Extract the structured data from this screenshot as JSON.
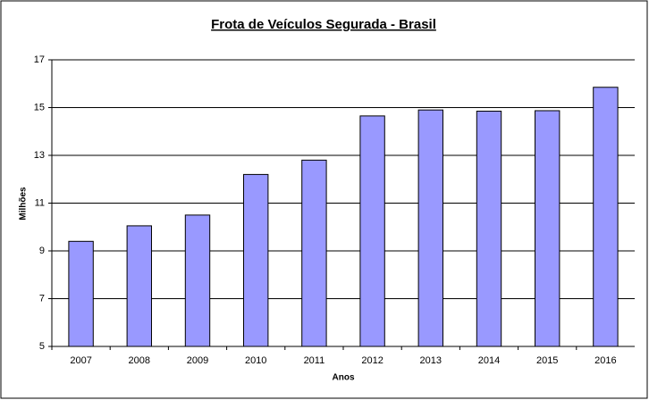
{
  "chart_data": {
    "type": "bar",
    "title": "Frota de Veículos Segurada - Brasil",
    "x_label": "Anos",
    "y_label": "Milhões",
    "categories": [
      "2007",
      "2008",
      "2009",
      "2010",
      "2011",
      "2012",
      "2013",
      "2014",
      "2015",
      "2016"
    ],
    "values": [
      9.4,
      10.05,
      10.5,
      12.2,
      12.8,
      14.65,
      14.9,
      14.85,
      14.87,
      15.85
    ],
    "color": "#9999ff",
    "ylim": [
      5,
      17
    ],
    "yticks": [
      5,
      7,
      9,
      11,
      13,
      15,
      17
    ],
    "grid": true
  }
}
